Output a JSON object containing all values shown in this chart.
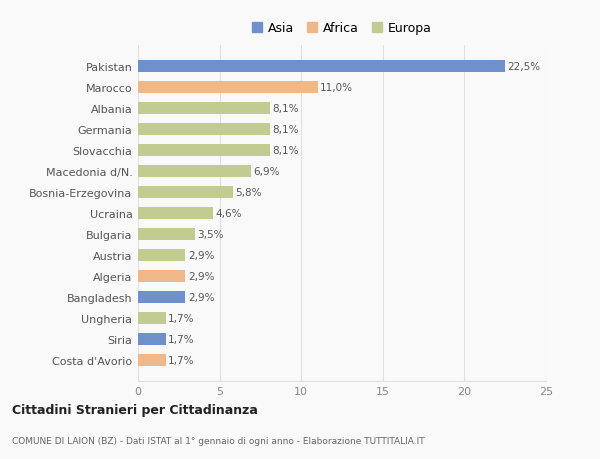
{
  "categories": [
    "Pakistan",
    "Marocco",
    "Albania",
    "Germania",
    "Slovacchia",
    "Macedonia d/N.",
    "Bosnia-Erzegovina",
    "Ucraina",
    "Bulgaria",
    "Austria",
    "Algeria",
    "Bangladesh",
    "Ungheria",
    "Siria",
    "Costa d'Avorio"
  ],
  "values": [
    22.5,
    11.0,
    8.1,
    8.1,
    8.1,
    6.9,
    5.8,
    4.6,
    3.5,
    2.9,
    2.9,
    2.9,
    1.7,
    1.7,
    1.7
  ],
  "bar_colors": [
    "#7090cc",
    "#f0b888",
    "#c0cc90",
    "#c0cc90",
    "#c0cc90",
    "#c0cc90",
    "#c0cc90",
    "#c0cc90",
    "#c0cc90",
    "#c0cc90",
    "#f0b888",
    "#7090cc",
    "#c0cc90",
    "#7090cc",
    "#f0b888"
  ],
  "labels": [
    "22,5%",
    "11,0%",
    "8,1%",
    "8,1%",
    "8,1%",
    "6,9%",
    "5,8%",
    "4,6%",
    "3,5%",
    "2,9%",
    "2,9%",
    "2,9%",
    "1,7%",
    "1,7%",
    "1,7%"
  ],
  "legend_labels": [
    "Asia",
    "Africa",
    "Europa"
  ],
  "legend_colors": [
    "#7090cc",
    "#f0b888",
    "#c0cc90"
  ],
  "xlim": [
    0,
    25
  ],
  "xticks": [
    0,
    5,
    10,
    15,
    20,
    25
  ],
  "title": "Cittadini Stranieri per Cittadinanza",
  "subtitle": "COMUNE DI LAION (BZ) - Dati ISTAT al 1° gennaio di ogni anno - Elaborazione TUTTITALIA.IT",
  "background_color": "#f9f9f9",
  "grid_color": "#e0e0e0"
}
